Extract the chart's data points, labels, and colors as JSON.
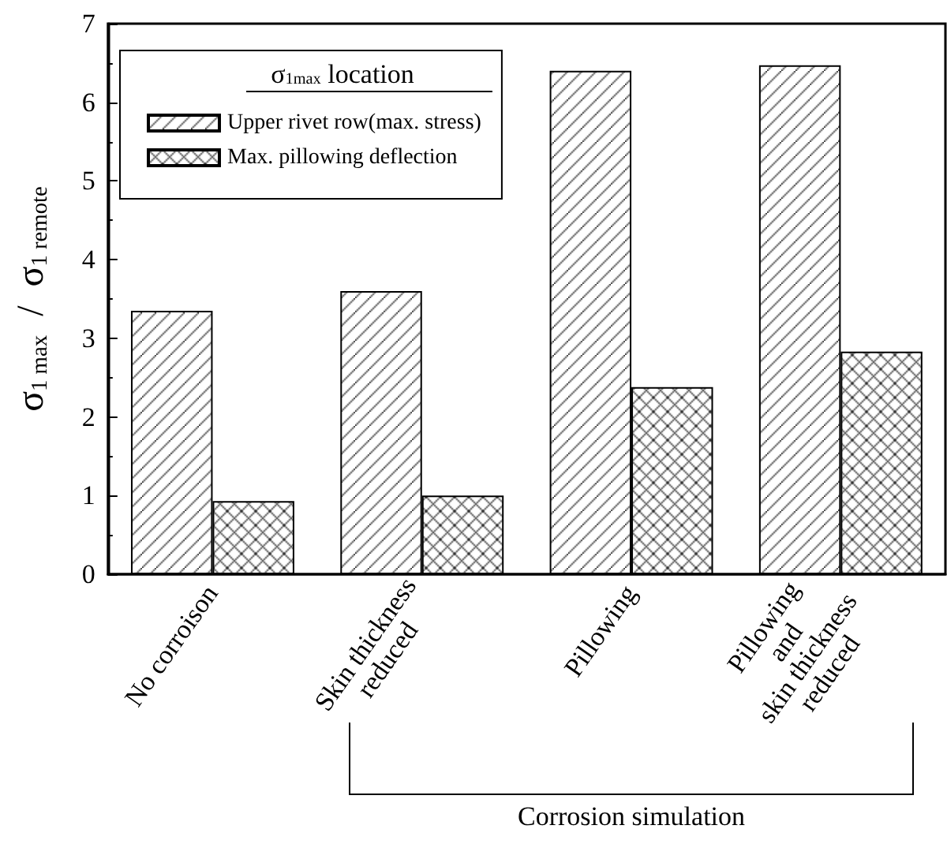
{
  "chart_data": {
    "type": "bar",
    "categories": [
      "No corroison",
      "Skin thickness\nreduced",
      "Pillowing",
      "Pillowing\nand\nskin thickness\nreduced"
    ],
    "series": [
      {
        "name": "Upper rivet row(max. stress)",
        "color": "#000000",
        "values": [
          3.35,
          3.6,
          6.4,
          6.47
        ]
      },
      {
        "name": "Max. pillowing deflection",
        "color": "#000000",
        "values": [
          0.93,
          1.0,
          2.38,
          2.83
        ]
      }
    ],
    "ylabel": "σ$_{1 max}$  /  σ$_{1 remote}$",
    "legend_title": "σ$_{1max}$ location",
    "ylim": [
      0,
      7
    ],
    "yticks": [
      0,
      1,
      2,
      3,
      4,
      5,
      6,
      7
    ],
    "annotations": [
      "Corrosion simulation"
    ],
    "legend": "top left",
    "grid": false
  }
}
